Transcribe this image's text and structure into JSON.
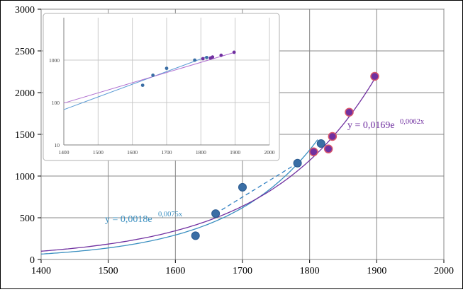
{
  "chart_data": [
    {
      "type": "scatter",
      "title": "",
      "xlabel": "",
      "ylabel": "",
      "xlim": [
        1400,
        2000
      ],
      "ylim": [
        0,
        3000
      ],
      "x_ticks": [
        "1400",
        "1500",
        "1600",
        "1700",
        "1800",
        "1900",
        "2000"
      ],
      "y_ticks": [
        "0",
        "500",
        "1000",
        "1500",
        "2000",
        "2500",
        "3000"
      ],
      "grid": true,
      "series": [
        {
          "color": "#3a6ea5",
          "marker": "circle",
          "points": [
            {
              "x": 1630,
              "y": 285
            },
            {
              "x": 1660,
              "y": 550
            },
            {
              "x": 1700,
              "y": 865
            },
            {
              "x": 1782,
              "y": 1155
            },
            {
              "x": 1817,
              "y": 1390
            }
          ]
        },
        {
          "color": "#7030a0",
          "marker": "circle",
          "points": [
            {
              "x": 1806,
              "y": 1290
            },
            {
              "x": 1828,
              "y": 1325
            },
            {
              "x": 1834,
              "y": 1475
            },
            {
              "x": 1859,
              "y": 1765
            },
            {
              "x": 1897,
              "y": 2195
            }
          ]
        }
      ],
      "trendlines": [
        {
          "color": "#3a8fc0",
          "model": "exponential",
          "a": 0.0018,
          "b": 0.0075,
          "x_range": [
            1400,
            1812
          ],
          "label": "y = 0,0018e",
          "label_exp": "0,0075x"
        },
        {
          "color": "#7030a0",
          "model": "exponential",
          "a": 0.0169,
          "b": 0.0062,
          "x_range": [
            1400,
            1897
          ],
          "label": "y = 0,0169e",
          "label_exp": "0,0062x"
        }
      ],
      "dashed_line": {
        "color": "#2f7fc1",
        "x": [
          1660,
          1782
        ],
        "y": [
          550,
          1155
        ]
      }
    },
    {
      "type": "scatter",
      "title": "",
      "xlabel": "",
      "ylabel": "",
      "xlim": [
        1400,
        2000
      ],
      "ylim": [
        10,
        10000
      ],
      "y_scale": "log",
      "x_ticks": [
        "1400",
        "1500",
        "1600",
        "1700",
        "1800",
        "1900",
        "2000"
      ],
      "y_ticks": [
        "10",
        "100",
        "1000"
      ],
      "grid": true,
      "series": [
        {
          "color": "#3a6ea5",
          "points": [
            {
              "x": 1630,
              "y": 255
            },
            {
              "x": 1660,
              "y": 440
            },
            {
              "x": 1700,
              "y": 640
            },
            {
              "x": 1782,
              "y": 1000
            },
            {
              "x": 1817,
              "y": 1150
            }
          ]
        },
        {
          "color": "#7030a0",
          "points": [
            {
              "x": 1806,
              "y": 1080
            },
            {
              "x": 1828,
              "y": 1120
            },
            {
              "x": 1834,
              "y": 1180
            },
            {
              "x": 1859,
              "y": 1300
            },
            {
              "x": 1897,
              "y": 1530
            }
          ]
        }
      ],
      "trendlines": [
        {
          "color": "#5b9bd5",
          "x": [
            1400,
            1817
          ],
          "y": [
            68,
            1200
          ]
        },
        {
          "color": "#b070d0",
          "x": [
            1400,
            1897
          ],
          "y": [
            97,
            1510
          ]
        }
      ]
    }
  ]
}
